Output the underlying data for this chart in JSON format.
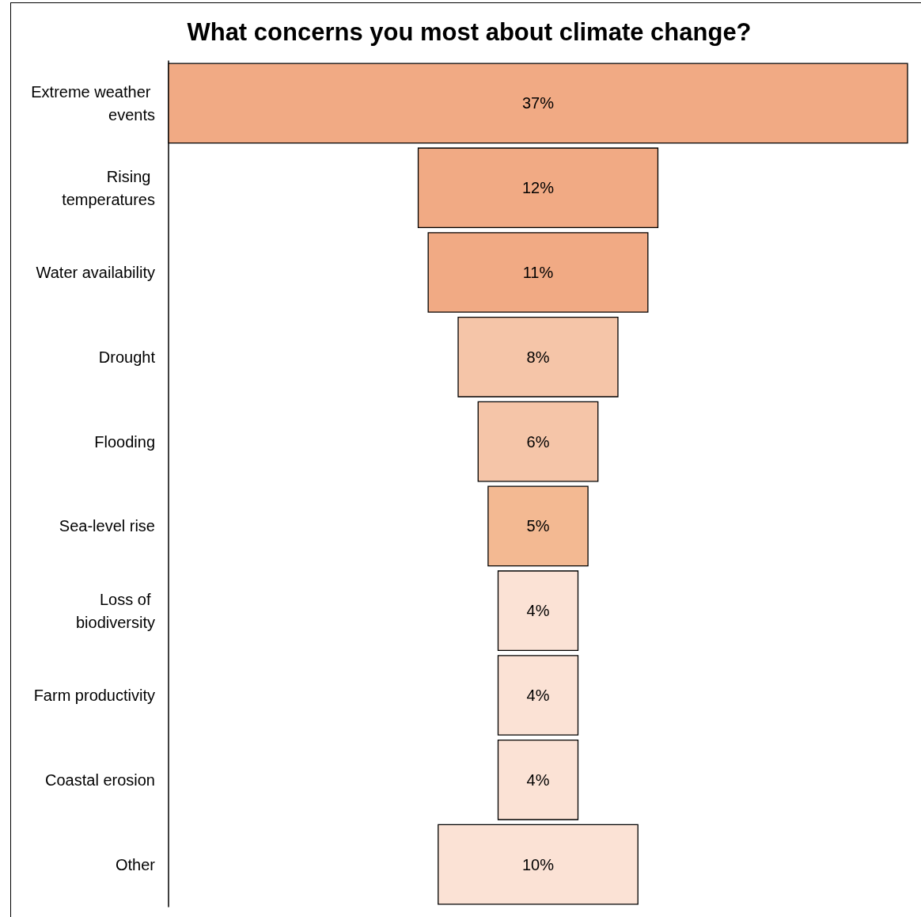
{
  "chart_data": {
    "type": "other",
    "title": "What concerns you most about climate change?",
    "categories": [
      "Extreme weather events",
      "Rising temperatures",
      "Water availability",
      "Drought",
      "Flooding",
      "Sea-level rise",
      "Loss of biodiversity",
      "Farm productivity",
      "Coastal erosion",
      "Other"
    ],
    "values": [
      37,
      12,
      11,
      8,
      6,
      5,
      4,
      4,
      4,
      10
    ],
    "value_labels": [
      "37%",
      "12%",
      "11%",
      "8%",
      "6%",
      "5%",
      "4%",
      "4%",
      "4%",
      "10%"
    ],
    "colors": [
      "#f1aa84",
      "#f1aa84",
      "#f1aa84",
      "#f5c5a8",
      "#f5c5a8",
      "#f3b992",
      "#fbe2d5",
      "#fbe2d5",
      "#fbe2d5",
      "#fbe2d5"
    ]
  }
}
